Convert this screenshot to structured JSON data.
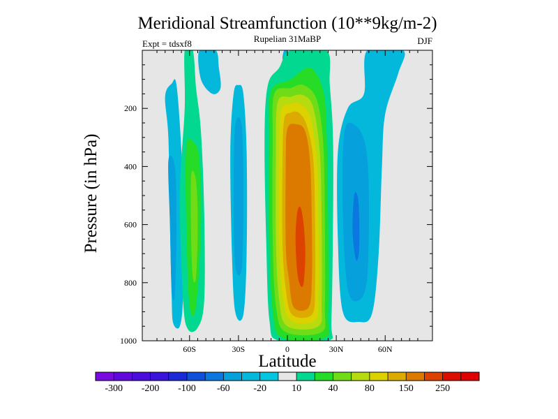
{
  "chart_data": {
    "type": "contour",
    "title": "Meridional Streamfunction (10**9kg/m-2)",
    "subtitle_center": "Rupelian  31MaBP",
    "subtitle_left": "Expt = tdsxf8",
    "subtitle_right": "DJF",
    "xlabel": "Latitude",
    "ylabel": "Pressure (in hPa)",
    "x_ticks": [
      {
        "value": -60,
        "label": "60S"
      },
      {
        "value": -30,
        "label": "30S"
      },
      {
        "value": 0,
        "label": "0"
      },
      {
        "value": 30,
        "label": "30N"
      },
      {
        "value": 60,
        "label": "60N"
      }
    ],
    "y_ticks": [
      {
        "value": 200,
        "label": "200"
      },
      {
        "value": 400,
        "label": "400"
      },
      {
        "value": 600,
        "label": "600"
      },
      {
        "value": 800,
        "label": "800"
      },
      {
        "value": 1000,
        "label": "1000"
      }
    ],
    "xlim": [
      -89,
      89
    ],
    "ylim": [
      1000,
      0
    ],
    "colorbar": {
      "levels": [
        -300,
        -250,
        -200,
        -150,
        -100,
        -80,
        -60,
        -40,
        -20,
        -10,
        10,
        20,
        40,
        60,
        80,
        100,
        150,
        200,
        250,
        300
      ],
      "colors": [
        "#7a0ae0",
        "#6008de",
        "#4c0cdc",
        "#3a14d8",
        "#1a2ad6",
        "#0e50da",
        "#0a78de",
        "#06a0dc",
        "#04b8dc",
        "#04c6e0",
        "#e6e6e6",
        "#02d890",
        "#26dc26",
        "#70dc18",
        "#b6dc10",
        "#dcd200",
        "#dcaa00",
        "#dc7a00",
        "#dc4200",
        "#dc0e00",
        "#e00000"
      ],
      "labels": [
        "-300",
        "-200",
        "-100",
        "-60",
        "-20",
        "10",
        "40",
        "80",
        "150",
        "250"
      ],
      "label_levels": [
        -300,
        -200,
        -100,
        -60,
        -20,
        10,
        40,
        80,
        150,
        250
      ]
    },
    "features": [
      {
        "name": "southern-negative-cell",
        "min_value": -20,
        "center_lat": -52,
        "center_p": 580
      },
      {
        "name": "southern-positive-cell",
        "max_value": 40,
        "center_lat": -58,
        "center_p": 600
      },
      {
        "name": "southern-midlat-negative-cell",
        "min_value": -40,
        "center_lat": -30,
        "center_p": 550
      },
      {
        "name": "tropical-positive-cell",
        "max_value": 250,
        "center_lat": 10,
        "center_p": 650
      },
      {
        "name": "northern-negative-cell",
        "min_value": -60,
        "center_lat": 42,
        "center_p": 620
      }
    ]
  },
  "colors": {
    "background": "#e6e6e6",
    "frame": "#000000"
  }
}
